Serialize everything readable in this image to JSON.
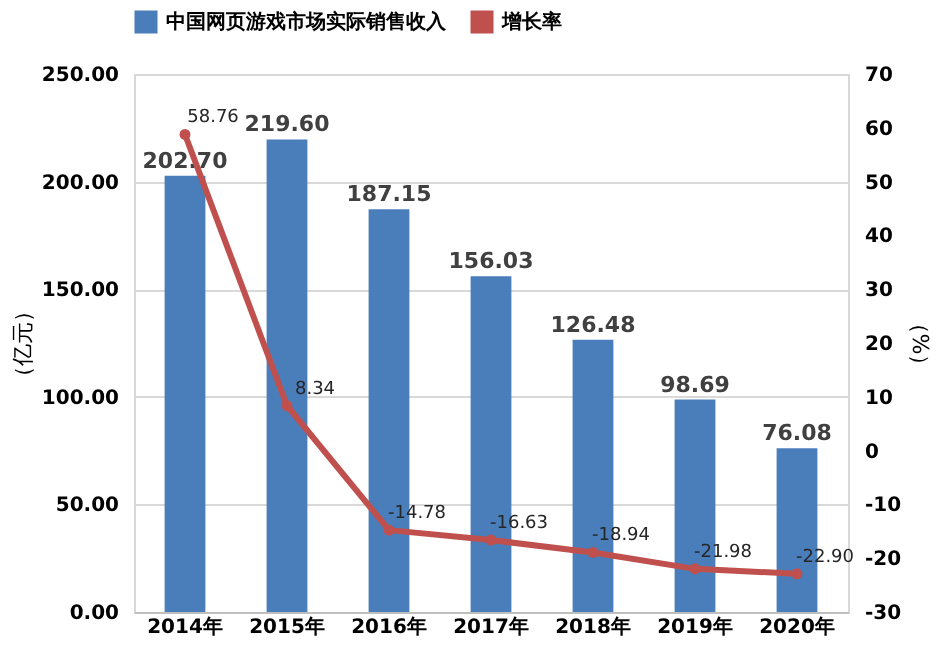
{
  "chart_data": {
    "type": "bar",
    "categories": [
      "2014年",
      "2015年",
      "2016年",
      "2017年",
      "2018年",
      "2019年",
      "2020年"
    ],
    "series": [
      {
        "name": "中国网页游戏市场实际销售收入",
        "color": "#4a7ebb",
        "values": [
          202.7,
          219.6,
          187.15,
          156.03,
          126.48,
          98.69,
          76.08
        ],
        "value_labels": [
          "202.70",
          "219.60",
          "187.15",
          "156.03",
          "126.48",
          "98.69",
          "76.08"
        ]
      },
      {
        "name": "增长率",
        "type": "line",
        "axis": "y2",
        "color": "#c0504d",
        "marker": "circle",
        "values": [
          58.76,
          8.34,
          -14.78,
          -16.63,
          -18.94,
          -21.98,
          -22.9
        ],
        "value_labels": [
          "58.76",
          "8.34",
          "-14.78",
          "-16.63",
          "-18.94",
          "-21.98",
          "-22.90"
        ]
      }
    ],
    "ylabel": "（亿元）",
    "y2label": "（%）",
    "ylim": [
      0,
      250
    ],
    "yticks": [
      {
        "value": 0,
        "label": "0.00"
      },
      {
        "value": 50,
        "label": "50.00"
      },
      {
        "value": 100,
        "label": "100.00"
      },
      {
        "value": 150,
        "label": "150.00"
      },
      {
        "value": 200,
        "label": "200.00"
      },
      {
        "value": 250,
        "label": "250.00"
      }
    ],
    "y2lim": [
      -30,
      70
    ],
    "y2ticks": [
      -30,
      -20,
      -10,
      0,
      10,
      20,
      30,
      40,
      50,
      60,
      70
    ],
    "grid": "y",
    "legend": "top"
  }
}
